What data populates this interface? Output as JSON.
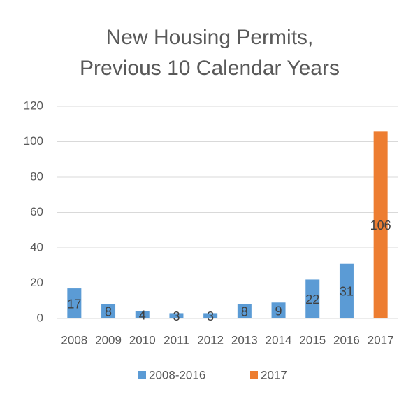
{
  "chart_data": {
    "type": "bar",
    "title": [
      "New Housing Permits,",
      "Previous 10 Calendar Years"
    ],
    "categories": [
      "2008",
      "2009",
      "2010",
      "2011",
      "2012",
      "2013",
      "2014",
      "2015",
      "2016",
      "2017"
    ],
    "series": [
      {
        "name": "2008-2016",
        "color": "#5b9bd5",
        "values": [
          17,
          8,
          4,
          3,
          3,
          8,
          9,
          22,
          31,
          null
        ]
      },
      {
        "name": "2017",
        "color": "#ed7d31",
        "values": [
          null,
          null,
          null,
          null,
          null,
          null,
          null,
          null,
          null,
          106
        ]
      }
    ],
    "ylim": [
      0,
      120
    ],
    "yticks": [
      0,
      20,
      40,
      60,
      80,
      100,
      120
    ],
    "grid": true,
    "legend": "bottom"
  }
}
